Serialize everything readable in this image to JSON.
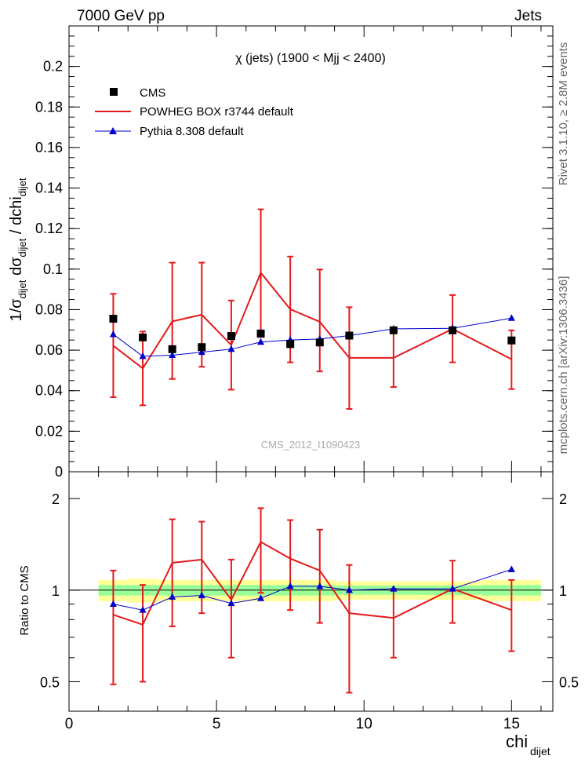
{
  "header": {
    "left": "7000 GeV pp",
    "right": "Jets"
  },
  "side_labels": {
    "rivet": "Rivet 3.1.10, ≥ 2.8M events",
    "mcplots": "mcplots.cern.ch [arXiv:1306.3436]"
  },
  "colors": {
    "cms": "#000000",
    "powheg": "#e31a1c",
    "pythia": "#0000cc",
    "band_yellow": "#ffff99",
    "band_green": "#99ff99"
  },
  "chart_data": {
    "type": "line",
    "title": "χ (jets) (1900 < Mjj < 2400)",
    "watermark": "CMS_2012_I1090423",
    "xlabel_main": "chi",
    "xlabel_sub": "dijet",
    "ylabel": "1/σ_dijet dσ_dijet / dchi_dijet",
    "ratio_ylabel": "Ratio to CMS",
    "xlim": [
      0,
      16.4
    ],
    "ylim": [
      0,
      0.22
    ],
    "ratio_ylim": [
      0.4,
      2.45
    ],
    "x_ticks": [
      0,
      5,
      10,
      15
    ],
    "y_ticks": [
      0,
      0.02,
      0.04,
      0.06,
      0.08,
      0.1,
      0.12,
      0.14,
      0.16,
      0.18,
      0.2
    ],
    "ratio_ticks": [
      0.5,
      1,
      2
    ],
    "x": [
      1.5,
      2.5,
      3.5,
      4.5,
      5.5,
      6.5,
      7.5,
      8.5,
      9.5,
      11,
      13,
      15
    ],
    "bins": [
      [
        1,
        2
      ],
      [
        2,
        3
      ],
      [
        3,
        4
      ],
      [
        4,
        5
      ],
      [
        5,
        6
      ],
      [
        6,
        7
      ],
      [
        7,
        8
      ],
      [
        8,
        9
      ],
      [
        9,
        10
      ],
      [
        10,
        12
      ],
      [
        12,
        14
      ],
      [
        14,
        16
      ]
    ],
    "legend": [
      "CMS",
      "POWHEG BOX r3744 default",
      "Pythia 8.308 default"
    ],
    "series": [
      {
        "name": "CMS",
        "style": "marker",
        "values": [
          0.0755,
          0.0663,
          0.0605,
          0.0615,
          0.067,
          0.0682,
          0.063,
          0.0638,
          0.0672,
          0.0698,
          0.0698,
          0.0648
        ]
      },
      {
        "name": "POWHEG BOX r3744 default",
        "style": "line-errors",
        "values": [
          0.0622,
          0.051,
          0.0742,
          0.0775,
          0.0625,
          0.0982,
          0.0802,
          0.074,
          0.0562,
          0.0562,
          0.0705,
          0.0555
        ],
        "err_up": [
          0.0878,
          0.0692,
          0.1032,
          0.1032,
          0.0845,
          0.1295,
          0.1062,
          0.0998,
          0.0812,
          0.07,
          0.0872,
          0.0698
        ],
        "err_down": [
          0.0368,
          0.0328,
          0.0458,
          0.0518,
          0.0405,
          0.0665,
          0.054,
          0.0495,
          0.031,
          0.0418,
          0.054,
          0.0408
        ]
      },
      {
        "name": "Pythia 8.308 default",
        "style": "line-triangles",
        "values": [
          0.0678,
          0.057,
          0.0575,
          0.059,
          0.0605,
          0.064,
          0.065,
          0.0655,
          0.0672,
          0.0705,
          0.0708,
          0.0758
        ]
      }
    ],
    "ratio": {
      "powheg": [
        0.83,
        0.77,
        1.23,
        1.26,
        0.93,
        1.44,
        1.27,
        1.16,
        0.84,
        0.81,
        1.01,
        0.86
      ],
      "powheg_err_up": [
        1.16,
        1.04,
        1.71,
        1.68,
        1.26,
        1.86,
        1.7,
        1.58,
        1.21,
        1.01,
        1.25,
        1.08
      ],
      "powheg_err_down": [
        0.49,
        0.5,
        0.76,
        0.84,
        0.6,
        0.98,
        0.86,
        0.78,
        0.46,
        0.6,
        0.78,
        0.63
      ],
      "pythia": [
        0.9,
        0.86,
        0.95,
        0.96,
        0.905,
        0.94,
        1.03,
        1.03,
        1.0,
        1.01,
        1.01,
        1.17
      ],
      "band_yellow": [
        [
          0.92,
          1.08
        ],
        [
          0.91,
          1.09
        ],
        [
          0.92,
          1.08
        ],
        [
          0.92,
          1.08
        ],
        [
          0.92,
          1.08
        ],
        [
          0.92,
          1.08
        ],
        [
          0.92,
          1.08
        ],
        [
          0.92,
          1.08
        ],
        [
          0.93,
          1.07
        ],
        [
          0.93,
          1.07
        ],
        [
          0.93,
          1.07
        ],
        [
          0.92,
          1.08
        ]
      ],
      "band_green": [
        [
          0.96,
          1.04
        ],
        [
          0.96,
          1.04
        ],
        [
          0.96,
          1.04
        ],
        [
          0.96,
          1.04
        ],
        [
          0.96,
          1.04
        ],
        [
          0.96,
          1.04
        ],
        [
          0.96,
          1.04
        ],
        [
          0.96,
          1.04
        ],
        [
          0.965,
          1.035
        ],
        [
          0.965,
          1.035
        ],
        [
          0.965,
          1.035
        ],
        [
          0.96,
          1.04
        ]
      ]
    }
  }
}
